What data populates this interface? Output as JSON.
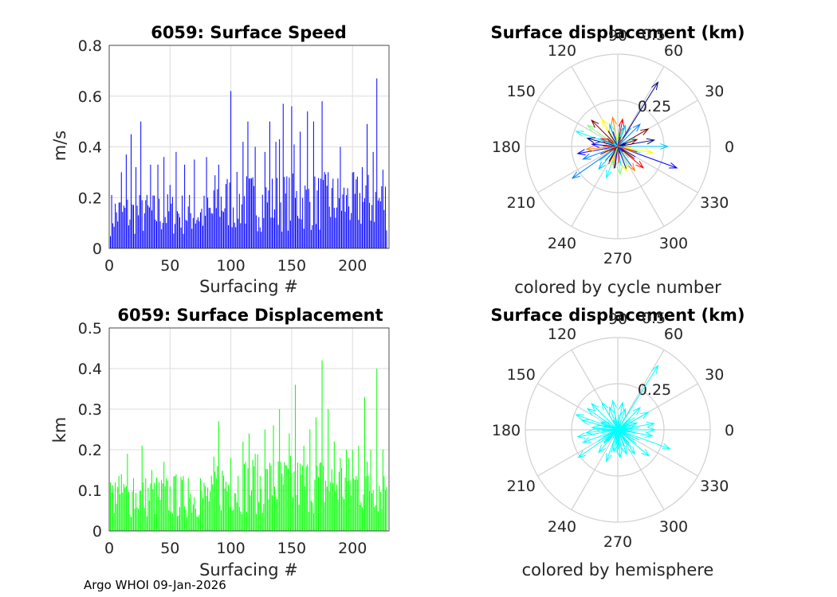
{
  "footer": "Argo WHOI 09-Jan-2026",
  "chart_data": [
    {
      "type": "bar",
      "title": "6059: Surface Speed",
      "xlabel": "Surfacing #",
      "ylabel": "m/s",
      "xlim": [
        0,
        230
      ],
      "ylim": [
        0,
        0.8
      ],
      "xticks": [
        "0",
        "50",
        "100",
        "150",
        "200"
      ],
      "yticks": [
        "0",
        "0.2",
        "0.4",
        "0.6",
        "0.8"
      ],
      "color": "#0000ff",
      "n": 228,
      "approx_series": [
        0.15,
        0.32,
        0.2,
        0.36,
        0.42,
        0.45,
        0.25,
        0.3,
        0.2,
        0.27,
        0.32,
        0.5,
        0.2,
        0.3,
        0.18,
        0.2,
        0.35,
        0.22,
        0.25,
        0.18,
        0.3,
        0.4,
        0.26,
        0.36,
        0.33,
        0.25,
        0.22,
        0.35,
        0.3,
        0.38,
        0.28,
        0.25,
        0.36,
        0.33,
        0.4,
        0.32,
        0.28,
        0.3,
        0.6,
        0.55,
        0.42,
        0.35,
        0.4,
        0.38,
        0.3,
        0.3,
        0.55,
        0.45,
        0.48,
        0.44,
        0.5,
        0.57,
        0.6,
        0.55,
        0.48,
        0.45,
        0.35,
        0.33,
        0.3,
        0.36,
        0.58,
        0.67,
        0.45,
        0.3
      ],
      "peaks": [
        [
          10,
          0.3
        ],
        [
          14,
          0.37
        ],
        [
          18,
          0.45
        ],
        [
          22,
          0.32
        ],
        [
          26,
          0.5
        ],
        [
          30,
          0.19
        ],
        [
          34,
          0.33
        ],
        [
          40,
          0.33
        ],
        [
          45,
          0.36
        ],
        [
          50,
          0.25
        ],
        [
          55,
          0.38
        ],
        [
          62,
          0.33
        ],
        [
          70,
          0.35
        ],
        [
          80,
          0.36
        ],
        [
          90,
          0.33
        ],
        [
          100,
          0.62
        ],
        [
          110,
          0.42
        ],
        [
          114,
          0.5
        ],
        [
          120,
          0.4
        ],
        [
          128,
          0.38
        ],
        [
          132,
          0.5
        ],
        [
          137,
          0.42
        ],
        [
          140,
          0.43
        ],
        [
          143,
          0.57
        ],
        [
          150,
          0.56
        ],
        [
          152,
          0.41
        ],
        [
          157,
          0.46
        ],
        [
          163,
          0.54
        ],
        [
          168,
          0.5
        ],
        [
          175,
          0.58
        ],
        [
          180,
          0.3
        ],
        [
          190,
          0.4
        ],
        [
          195,
          0.21
        ],
        [
          208,
          0.32
        ],
        [
          212,
          0.49
        ],
        [
          217,
          0.38
        ],
        [
          220,
          0.67
        ],
        [
          225,
          0.31
        ]
      ]
    },
    {
      "type": "polar-vector",
      "title": "Surface displacement (km)",
      "rlim": [
        0,
        0.5
      ],
      "rticks": [
        "0.25",
        "0.5"
      ],
      "angle_ticks": [
        "0",
        "30",
        "60",
        "90",
        "120",
        "150",
        "180",
        "210",
        "240",
        "270",
        "300",
        "330"
      ],
      "caption": "colored by cycle number",
      "vectors": [
        [
          58,
          0.41
        ],
        [
          340,
          0.34
        ],
        [
          215,
          0.3
        ],
        [
          0,
          0.27
        ],
        [
          160,
          0.24
        ],
        [
          145,
          0.2
        ],
        [
          120,
          0.17
        ],
        [
          100,
          0.16
        ],
        [
          80,
          0.15
        ],
        [
          30,
          0.19
        ],
        [
          10,
          0.2
        ],
        [
          190,
          0.22
        ],
        [
          200,
          0.2
        ],
        [
          230,
          0.16
        ],
        [
          250,
          0.18
        ],
        [
          275,
          0.15
        ],
        [
          290,
          0.14
        ],
        [
          305,
          0.16
        ],
        [
          320,
          0.18
        ],
        [
          135,
          0.2
        ],
        [
          165,
          0.17
        ],
        [
          175,
          0.14
        ],
        [
          45,
          0.17
        ],
        [
          70,
          0.12
        ],
        [
          110,
          0.13
        ],
        [
          260,
          0.12
        ],
        [
          350,
          0.19
        ],
        [
          185,
          0.17
        ],
        [
          155,
          0.1
        ],
        [
          20,
          0.11
        ]
      ]
    },
    {
      "type": "bar",
      "title": "6059: Surface Displacement",
      "xlabel": "Surfacing #",
      "ylabel": "km",
      "xlim": [
        0,
        230
      ],
      "ylim": [
        0,
        0.5
      ],
      "xticks": [
        "0",
        "50",
        "100",
        "150",
        "200"
      ],
      "yticks": [
        "0",
        "0.1",
        "0.2",
        "0.3",
        "0.4",
        "0.5"
      ],
      "color": "#00ff00",
      "n": 228,
      "peaks": [
        [
          5,
          0.12
        ],
        [
          10,
          0.14
        ],
        [
          15,
          0.19
        ],
        [
          20,
          0.13
        ],
        [
          27,
          0.21
        ],
        [
          35,
          0.15
        ],
        [
          45,
          0.17
        ],
        [
          55,
          0.14
        ],
        [
          65,
          0.13
        ],
        [
          75,
          0.13
        ],
        [
          90,
          0.27
        ],
        [
          100,
          0.18
        ],
        [
          110,
          0.22
        ],
        [
          115,
          0.24
        ],
        [
          120,
          0.19
        ],
        [
          128,
          0.25
        ],
        [
          135,
          0.26
        ],
        [
          140,
          0.3
        ],
        [
          148,
          0.24
        ],
        [
          153,
          0.36
        ],
        [
          160,
          0.21
        ],
        [
          165,
          0.25
        ],
        [
          170,
          0.28
        ],
        [
          175,
          0.42
        ],
        [
          180,
          0.3
        ],
        [
          185,
          0.22
        ],
        [
          190,
          0.18
        ],
        [
          195,
          0.2
        ],
        [
          200,
          0.2
        ],
        [
          205,
          0.21
        ],
        [
          210,
          0.33
        ],
        [
          215,
          0.2
        ],
        [
          220,
          0.4
        ],
        [
          225,
          0.2
        ]
      ]
    },
    {
      "type": "polar-vector",
      "title": "Surface displacement (km)",
      "rlim": [
        0,
        0.5
      ],
      "rticks": [
        "0.25",
        "0.5"
      ],
      "angle_ticks": [
        "0",
        "30",
        "60",
        "90",
        "120",
        "150",
        "180",
        "210",
        "240",
        "270",
        "300",
        "330"
      ],
      "caption": "colored by hemisphere",
      "color": "#00ffff",
      "vectors": [
        [
          58,
          0.41
        ],
        [
          340,
          0.3
        ],
        [
          215,
          0.26
        ],
        [
          0,
          0.2
        ],
        [
          160,
          0.24
        ],
        [
          145,
          0.2
        ],
        [
          120,
          0.17
        ],
        [
          100,
          0.16
        ],
        [
          80,
          0.15
        ],
        [
          30,
          0.19
        ],
        [
          10,
          0.2
        ],
        [
          190,
          0.22
        ],
        [
          200,
          0.2
        ],
        [
          230,
          0.16
        ],
        [
          250,
          0.18
        ],
        [
          275,
          0.15
        ],
        [
          290,
          0.14
        ],
        [
          305,
          0.16
        ],
        [
          320,
          0.22
        ],
        [
          135,
          0.2
        ],
        [
          165,
          0.2
        ],
        [
          175,
          0.14
        ],
        [
          45,
          0.17
        ],
        [
          70,
          0.12
        ],
        [
          110,
          0.13
        ],
        [
          260,
          0.12
        ],
        [
          350,
          0.19
        ],
        [
          185,
          0.17
        ],
        [
          155,
          0.1
        ],
        [
          20,
          0.11
        ]
      ]
    }
  ]
}
